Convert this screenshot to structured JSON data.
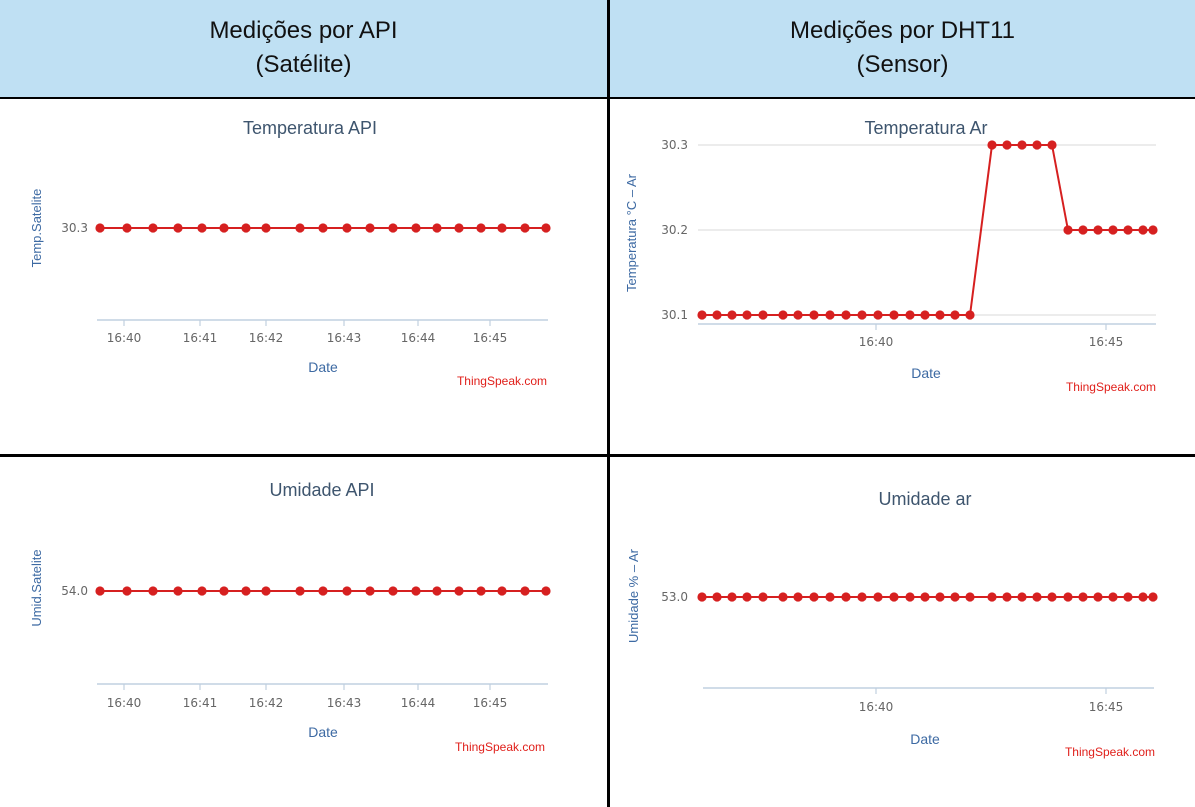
{
  "headers": {
    "left": {
      "line1": "Medições por API",
      "line2": "(Satélite)"
    },
    "right": {
      "line1": "Medições por DHT11",
      "line2": "(Sensor)"
    }
  },
  "colors": {
    "header_bg": "#bfe0f3",
    "series": "#d62020",
    "axis": "#c0d0e0",
    "grid": "#e6e6e6",
    "credit": "#e0201b"
  },
  "chart_data": [
    {
      "type": "line",
      "title": "Temperatura API",
      "xlabel": "Date",
      "ylabel": "Temp.Satelite",
      "credit": "ThingSpeak.com",
      "x_ticks": [
        "16:40",
        "16:41",
        "16:42",
        "16:43",
        "16:44",
        "16:45"
      ],
      "x_range": [
        "16:39.95",
        "16:45.55"
      ],
      "y_ticks": [
        "30.3"
      ],
      "series": [
        {
          "values": [
            30.3,
            30.3,
            30.3,
            30.3,
            30.3,
            30.3,
            30.3,
            30.3,
            30.3,
            30.3,
            30.3,
            30.3,
            30.3,
            30.3,
            30.3,
            30.3,
            30.3,
            30.3,
            30.3,
            30.3
          ]
        }
      ],
      "grid": false
    },
    {
      "type": "line",
      "title": "Temperatura Ar",
      "xlabel": "Date",
      "ylabel": "Temperatura °C – Ar",
      "credit": "ThingSpeak.com",
      "x_ticks": [
        "16:40",
        "16:45"
      ],
      "y_ticks": [
        "30.1",
        "30.2",
        "30.3"
      ],
      "ylim": [
        30.1,
        30.3
      ],
      "series": [
        {
          "values": [
            30.1,
            30.1,
            30.1,
            30.1,
            30.1,
            30.1,
            30.1,
            30.1,
            30.1,
            30.1,
            30.1,
            30.1,
            30.1,
            30.1,
            30.1,
            30.1,
            30.1,
            30.1,
            30.3,
            30.3,
            30.3,
            30.3,
            30.3,
            30.2,
            30.2,
            30.2,
            30.2,
            30.2,
            30.2,
            30.2
          ]
        }
      ],
      "grid": true
    },
    {
      "type": "line",
      "title": "Umidade API",
      "xlabel": "Date",
      "ylabel": "Umid.Satelite",
      "credit": "ThingSpeak.com",
      "x_ticks": [
        "16:40",
        "16:41",
        "16:42",
        "16:43",
        "16:44",
        "16:45"
      ],
      "y_ticks": [
        "54.0"
      ],
      "series": [
        {
          "values": [
            54.0,
            54.0,
            54.0,
            54.0,
            54.0,
            54.0,
            54.0,
            54.0,
            54.0,
            54.0,
            54.0,
            54.0,
            54.0,
            54.0,
            54.0,
            54.0,
            54.0,
            54.0,
            54.0,
            54.0
          ]
        }
      ],
      "grid": false
    },
    {
      "type": "line",
      "title": "Umidade ar",
      "xlabel": "Date",
      "ylabel": "Umidade % – Ar",
      "credit": "ThingSpeak.com",
      "x_ticks": [
        "16:40",
        "16:45"
      ],
      "y_ticks": [
        "53.0"
      ],
      "series": [
        {
          "values": [
            53.0,
            53.0,
            53.0,
            53.0,
            53.0,
            53.0,
            53.0,
            53.0,
            53.0,
            53.0,
            53.0,
            53.0,
            53.0,
            53.0,
            53.0,
            53.0,
            53.0,
            53.0,
            53.0,
            53.0,
            53.0,
            53.0,
            53.0,
            53.0,
            53.0,
            53.0,
            53.0,
            53.0,
            53.0,
            53.0
          ]
        }
      ],
      "grid": false
    }
  ]
}
